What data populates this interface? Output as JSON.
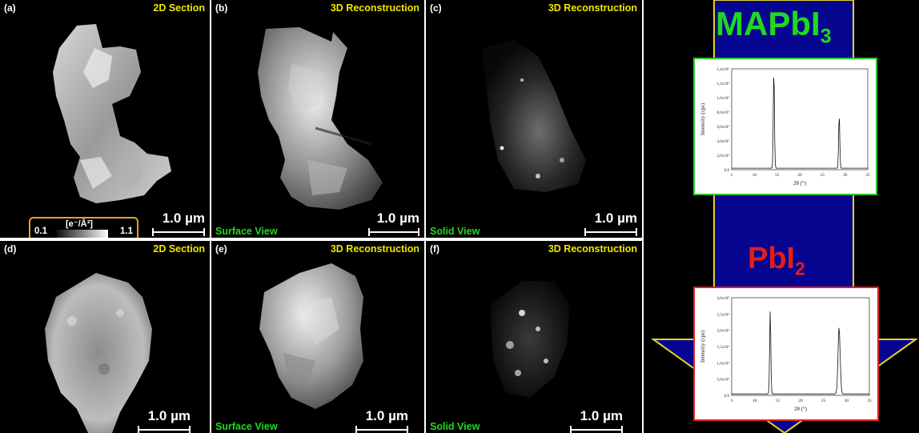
{
  "panels": [
    {
      "label": "(a)",
      "title": "2D Section",
      "view": "",
      "scale": "1.0 µm"
    },
    {
      "label": "(b)",
      "title": "3D Reconstruction",
      "view": "Surface View",
      "scale": "1.0 µm"
    },
    {
      "label": "(c)",
      "title": "3D Reconstruction",
      "view": "Solid View",
      "scale": "1.0 µm"
    },
    {
      "label": "(d)",
      "title": "2D Section",
      "view": "",
      "scale": "1.0 µm"
    },
    {
      "label": "(e)",
      "title": "3D Reconstruction",
      "view": "Surface View",
      "scale": "1.0 µm"
    },
    {
      "label": "(f)",
      "title": "3D Reconstruction",
      "view": "Solid View",
      "scale": "1.0 µm"
    }
  ],
  "colorbar": {
    "min": "0.1",
    "max": "1.1",
    "unit": "[e⁻/Å³]"
  },
  "materials": {
    "top": {
      "base": "MAPbI",
      "sub": "3",
      "color": "#1fd91f"
    },
    "bottom": {
      "base": "PbI",
      "sub": "2",
      "color": "#e11d1d"
    }
  },
  "xrd_top": {
    "ylabel": "Intensity (cps)",
    "xlabel": "2θ (°)",
    "yticks": [
      "0,0",
      "2,0x10⁵",
      "4,0x10⁵",
      "6,0x10⁵",
      "8,0x10⁵",
      "1,0x10⁶",
      "1,2x10⁶",
      "1,4x10⁶"
    ],
    "xticks": [
      "5",
      "10",
      "15",
      "20",
      "25",
      "30",
      "35"
    ]
  },
  "xrd_bottom": {
    "ylabel": "Intensity (cps)",
    "xlabel": "2θ (°)",
    "yticks": [
      "0,0",
      "5,0x10⁴",
      "1,0x10⁵",
      "1,5x10⁵",
      "2,0x10⁵",
      "2,5x10⁵",
      "3,0x10⁵"
    ],
    "xticks": [
      "5",
      "10",
      "15",
      "20",
      "25",
      "30",
      "35"
    ]
  },
  "colors": {
    "arrow_fill": "#05058f",
    "arrow_outline": "#e6d21c",
    "title": "#f2e600",
    "view": "#1fd91f",
    "colorbar_border": "#e8a21c",
    "frame_top": "#2bc42b",
    "frame_bottom": "#e11d1d"
  }
}
